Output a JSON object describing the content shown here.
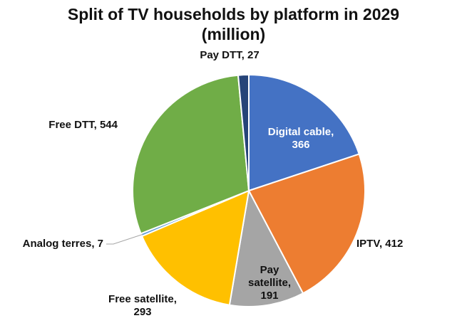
{
  "chart_data": {
    "type": "pie",
    "title": "Split of TV households by platform in 2029 (million)",
    "categories": [
      "Digital cable",
      "IPTV",
      "Pay satellite",
      "Free satellite",
      "Analog terres",
      "Free DTT",
      "Pay DTT"
    ],
    "values": [
      366,
      412,
      191,
      293,
      7,
      544,
      27
    ],
    "value_labels": [
      "Digital cable, 366",
      "IPTV, 412",
      "Pay satellite, 191",
      "Free satellite, 293",
      "Analog terres, 7",
      "Free DTT, 544",
      "Pay DTT, 27"
    ],
    "colors": [
      "#4472c4",
      "#ed7d31",
      "#a5a5a5",
      "#ffc000",
      "#5b9bd5",
      "#70ad47",
      "#264478"
    ]
  }
}
